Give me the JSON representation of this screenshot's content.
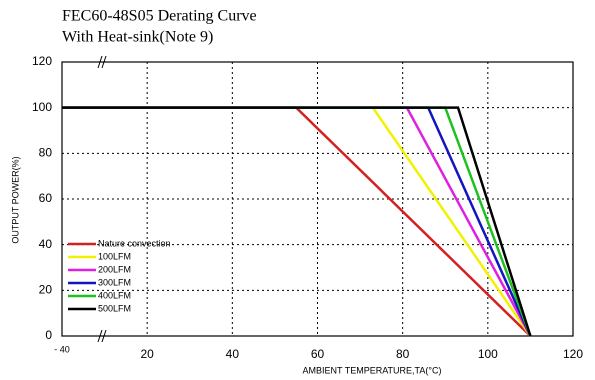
{
  "chart_data": {
    "type": "line",
    "title": "FEC60-48S05 Derating Curve",
    "subtitle": "With Heat-sink(Note 9)",
    "x_label": "AMBIENT TEMPERATURE,TA(°C)",
    "y_label": "OUTPUT POWER(%)",
    "xlim": [
      -40,
      120
    ],
    "xticks": [
      {
        "value": -40,
        "label": "- 40"
      },
      20,
      40,
      60,
      80,
      100,
      120
    ],
    "ylim": [
      0,
      120
    ],
    "yticks": [
      0,
      20,
      40,
      60,
      80,
      100,
      120
    ],
    "grid": true,
    "legend": "lower-left",
    "series": [
      {
        "name": "Nature convection",
        "color": "#d42020",
        "x": [
          -40,
          55,
          110
        ],
        "values": [
          100,
          100,
          0
        ]
      },
      {
        "name": "100LFM",
        "color": "#f2f200",
        "x": [
          -40,
          73,
          110
        ],
        "values": [
          100,
          100,
          0
        ]
      },
      {
        "name": "200LFM",
        "color": "#e020e0",
        "x": [
          -40,
          81,
          110
        ],
        "values": [
          100,
          100,
          0
        ]
      },
      {
        "name": "300LFM",
        "color": "#1414c0",
        "x": [
          -40,
          86,
          110
        ],
        "values": [
          100,
          100,
          0
        ]
      },
      {
        "name": "400LFM",
        "color": "#20c020",
        "x": [
          -40,
          90,
          110
        ],
        "values": [
          100,
          100,
          0
        ]
      },
      {
        "name": "500LFM",
        "color": "#000000",
        "x": [
          -40,
          93,
          110
        ],
        "values": [
          100,
          100,
          0
        ]
      }
    ]
  }
}
